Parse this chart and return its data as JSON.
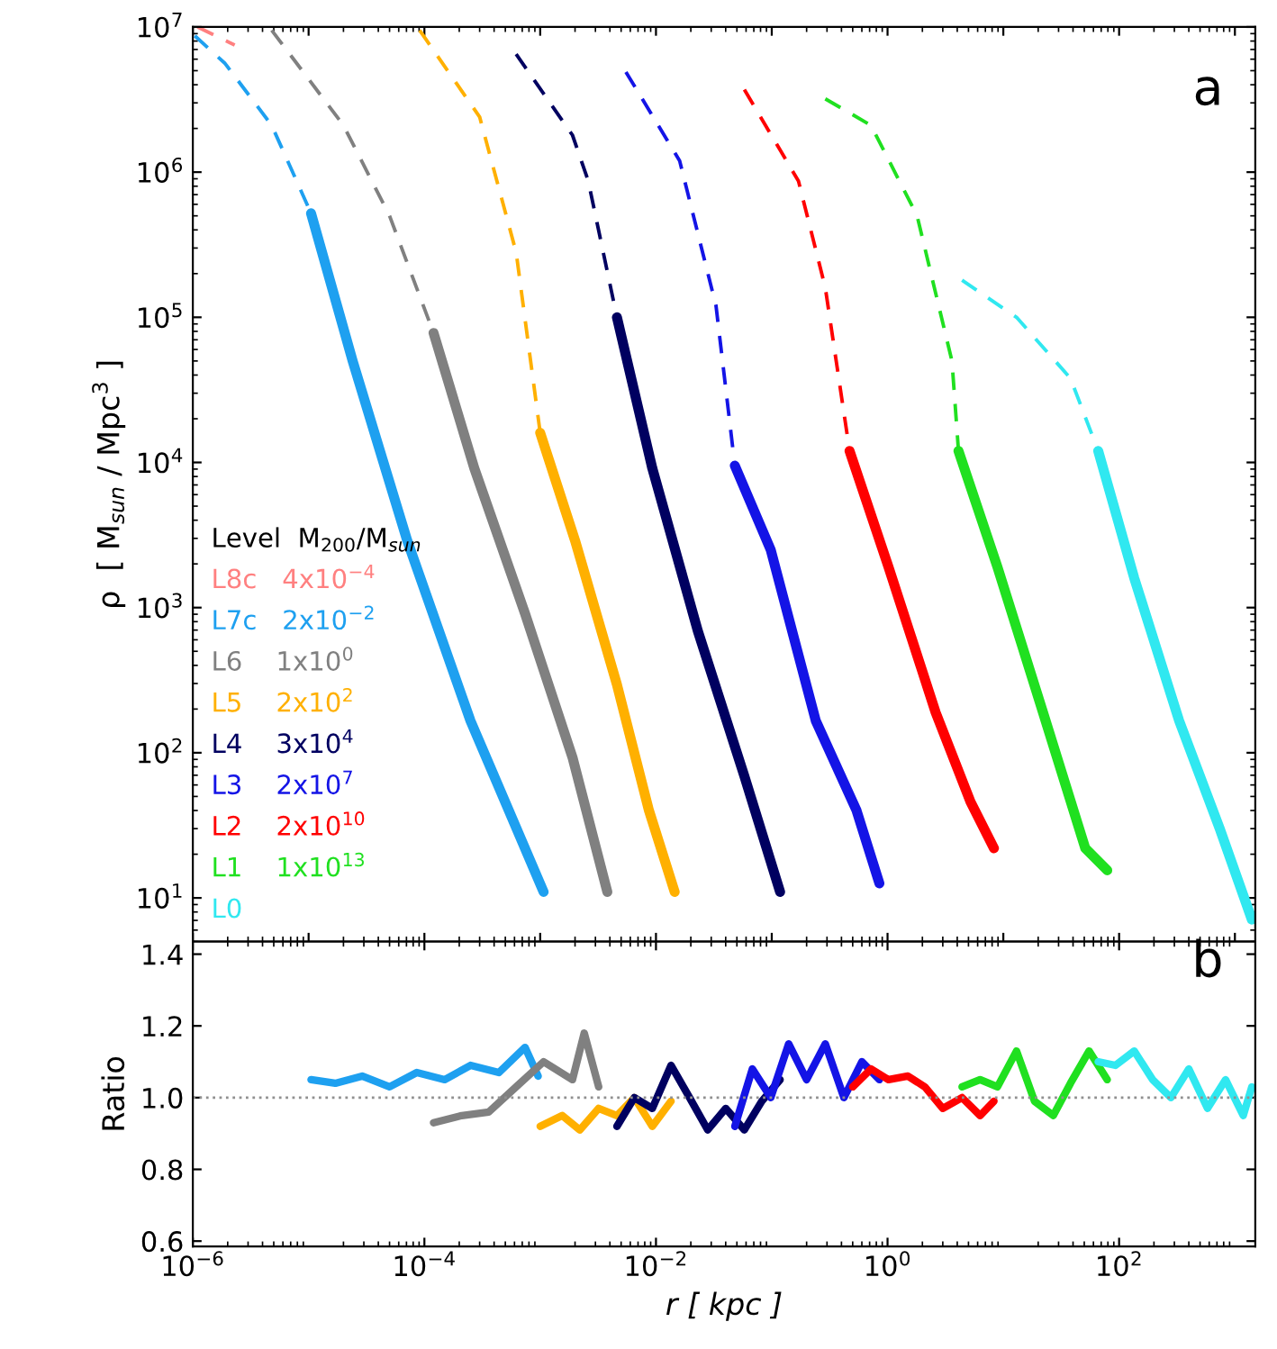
{
  "chart_data": [
    {
      "type": "line",
      "ylabel": "ρ  [ M$_{sun}$ / Mpc$^{3}$ ]",
      "log": "xy",
      "xlim": [
        1e-06,
        1500
      ],
      "ylim": [
        5,
        10000000.0
      ],
      "yticks": [
        {
          "value": 10,
          "label": "10$^{1}$"
        },
        {
          "value": 100,
          "label": "10$^{2}$"
        },
        {
          "value": 1000,
          "label": "10$^{3}$"
        },
        {
          "value": 10000,
          "label": "10$^{4}$"
        },
        {
          "value": 100000,
          "label": "10$^{5}$"
        },
        {
          "value": 1000000,
          "label": "10$^{6}$"
        },
        {
          "value": 10000000,
          "label": "10$^{7}$"
        }
      ],
      "tick_labels": "y",
      "legend": "bottom left",
      "legend_title": "Level  M$_{200}$/M$_{sun}$",
      "annotations": [
        "a"
      ],
      "series": [
        {
          "name": "L8c   4x10$^{−4}$",
          "color": "#ff8080",
          "line_style": "dashed",
          "x": [
            1.1e-06,
            2.3e-06
          ],
          "values": [
            10000000.0,
            7500000.0
          ]
        },
        {
          "color": "#1ea0f0",
          "line_style": "dashed",
          "x": [
            1.04e-06,
            1.9e-06,
            4.8e-06,
            1.05e-05
          ],
          "values": [
            8700000.0,
            5600000.0,
            2100000.0,
            520000.0
          ]
        },
        {
          "name": "L7c   2x10$^{−2}$",
          "color": "#1ea0f0",
          "line_style": "solid",
          "x": [
            1.05e-05,
            2.4e-05,
            7.1e-05,
            0.00025,
            0.00107
          ],
          "values": [
            520000.0,
            50000.0,
            2900,
            166,
            11
          ]
        },
        {
          "color": "#808080",
          "line_style": "dashed",
          "x": [
            4.8e-06,
            2e-05,
            5e-05,
            0.00012
          ],
          "values": [
            9500000.0,
            2100000.0,
            500000.0,
            78000.0
          ]
        },
        {
          "name": "L6    1x10$^{0}$",
          "color": "#808080",
          "line_style": "solid",
          "x": [
            0.00012,
            0.00027,
            0.00074,
            0.0019,
            0.0038
          ],
          "values": [
            78000.0,
            9100,
            910,
            93,
            11
          ]
        },
        {
          "color": "#ffb000",
          "line_style": "dashed",
          "x": [
            9.1e-05,
            0.0003,
            0.00062,
            0.001
          ],
          "values": [
            9500000.0,
            2400000.0,
            280000.0,
            16000.0
          ]
        },
        {
          "name": "L5    2x10$^{2}$",
          "color": "#ffb000",
          "line_style": "solid",
          "x": [
            0.001,
            0.002,
            0.0046,
            0.0087,
            0.0145
          ],
          "values": [
            16000.0,
            2900,
            295,
            40,
            11
          ]
        },
        {
          "color": "#000060",
          "line_style": "dashed",
          "x": [
            0.00062,
            0.0019,
            0.0026,
            0.0046
          ],
          "values": [
            6500000.0,
            1800000.0,
            870000.0,
            100000.0
          ]
        },
        {
          "name": "L4    3x10$^{4}$",
          "color": "#000060",
          "line_style": "solid",
          "x": [
            0.0046,
            0.0093,
            0.023,
            0.058,
            0.118
          ],
          "values": [
            100000.0,
            9100,
            690,
            69,
            11
          ]
        },
        {
          "color": "#1414e6",
          "line_style": "dashed",
          "x": [
            0.0055,
            0.016,
            0.033,
            0.048
          ],
          "values": [
            4900000.0,
            1200000.0,
            120000.0,
            9500
          ]
        },
        {
          "name": "L3    2x10$^{7}$",
          "color": "#1414e6",
          "line_style": "solid",
          "x": [
            0.048,
            0.098,
            0.24,
            0.54,
            0.85
          ],
          "values": [
            9500,
            2500,
            166,
            40,
            12.6
          ]
        },
        {
          "color": "#ff0000",
          "line_style": "dashed",
          "x": [
            0.058,
            0.17,
            0.29,
            0.47
          ],
          "values": [
            3700000.0,
            870000.0,
            160000.0,
            12000.0
          ]
        },
        {
          "name": "L2    2x10$^{10}$",
          "color": "#ff0000",
          "line_style": "solid",
          "x": [
            0.47,
            1.02,
            2.6,
            5.2,
            8.3
          ],
          "values": [
            12000.0,
            1900,
            190,
            46,
            22
          ]
        },
        {
          "color": "#20e020",
          "line_style": "dashed",
          "x": [
            0.29,
            0.72,
            1.8,
            3.6,
            4.1
          ],
          "values": [
            3200000.0,
            2100000.0,
            500000.0,
            50000.0,
            12000.0
          ]
        },
        {
          "name": "L1    1x10$^{13}$",
          "color": "#20e020",
          "line_style": "solid",
          "x": [
            4.1,
            8.9,
            22,
            51,
            79
          ],
          "values": [
            12000.0,
            1900,
            190,
            22,
            15.5
          ]
        },
        {
          "color": "#30e8f0",
          "line_style": "dashed",
          "x": [
            4.4,
            13,
            38,
            66
          ],
          "values": [
            180000.0,
            100000.0,
            38000.0,
            12000.0
          ]
        },
        {
          "name": "L0",
          "color": "#30e8f0",
          "line_style": "solid",
          "x": [
            66,
            135,
            330,
            740,
            1400
          ],
          "values": [
            12000.0,
            1600,
            166,
            30,
            7.1
          ]
        }
      ]
    },
    {
      "type": "line",
      "xlabel": "r [ kpc ]",
      "ylabel": "Ratio",
      "log": "x",
      "xlim": [
        1e-06,
        1500
      ],
      "ylim": [
        0.585,
        1.435
      ],
      "xticks": [
        {
          "value": 1e-06,
          "label": "10$^{−6}$"
        },
        {
          "value": 0.0001,
          "label": "10$^{−4}$"
        },
        {
          "value": 0.01,
          "label": "10$^{−2}$"
        },
        {
          "value": 1,
          "label": "10$^{0}$"
        },
        {
          "value": 100,
          "label": "10$^{2}$"
        }
      ],
      "yticks": [
        0.6,
        0.8,
        {
          "value": 1.0,
          "label": "1.0"
        },
        1.2,
        1.4
      ],
      "annotations": [
        "b"
      ],
      "ref_lines": [
        {
          "axis": "y",
          "value": 1.0,
          "color": "#909090",
          "line_style": "dotted"
        }
      ],
      "series": [
        {
          "color": "#1ea0f0",
          "line_style": "solid",
          "x": [
            1.05e-05,
            1.7e-05,
            2.9e-05,
            5e-05,
            8.6e-05,
            0.00015,
            0.00025,
            0.00044,
            0.00074,
            0.00096
          ],
          "values": [
            1.05,
            1.04,
            1.06,
            1.03,
            1.07,
            1.05,
            1.09,
            1.07,
            1.14,
            1.06
          ]
        },
        {
          "color": "#808080",
          "line_style": "solid",
          "x": [
            0.00012,
            0.00021,
            0.00036,
            0.00062,
            0.00107,
            0.0019,
            0.0024,
            0.0032
          ],
          "values": [
            0.93,
            0.95,
            0.96,
            1.03,
            1.1,
            1.05,
            1.18,
            1.03
          ]
        },
        {
          "color": "#ffb000",
          "line_style": "solid",
          "x": [
            0.001,
            0.00155,
            0.0022,
            0.0032,
            0.0046,
            0.0065,
            0.0093,
            0.0135
          ],
          "values": [
            0.92,
            0.95,
            0.91,
            0.97,
            0.95,
            1.0,
            0.92,
            0.99
          ]
        },
        {
          "color": "#000060",
          "line_style": "solid",
          "x": [
            0.0046,
            0.0065,
            0.0093,
            0.0135,
            0.0195,
            0.028,
            0.04,
            0.058,
            0.082,
            0.118
          ],
          "values": [
            0.92,
            1.0,
            0.97,
            1.09,
            1.0,
            0.91,
            0.97,
            0.91,
            0.99,
            1.05
          ]
        },
        {
          "color": "#1414e6",
          "line_style": "solid",
          "x": [
            0.048,
            0.068,
            0.098,
            0.14,
            0.2,
            0.29,
            0.42,
            0.6,
            0.85
          ],
          "values": [
            0.92,
            1.08,
            1.0,
            1.15,
            1.05,
            1.15,
            1.0,
            1.1,
            1.05
          ]
        },
        {
          "color": "#ff0000",
          "line_style": "solid",
          "x": [
            0.5,
            0.72,
            1.02,
            1.5,
            2.1,
            3.0,
            4.4,
            6.3,
            8.3
          ],
          "values": [
            1.03,
            1.08,
            1.05,
            1.06,
            1.03,
            0.97,
            1.0,
            0.95,
            0.99
          ]
        },
        {
          "color": "#20e020",
          "line_style": "solid",
          "x": [
            4.4,
            6.3,
            8.9,
            13,
            18.6,
            27,
            38,
            55,
            79
          ],
          "values": [
            1.03,
            1.05,
            1.03,
            1.13,
            0.99,
            0.95,
            1.04,
            1.13,
            1.05
          ]
        },
        {
          "color": "#30e8f0",
          "line_style": "solid",
          "x": [
            66,
            93,
            135,
            195,
            280,
            400,
            580,
            830,
            1180,
            1400
          ],
          "values": [
            1.1,
            1.09,
            1.13,
            1.05,
            1.0,
            1.08,
            0.97,
            1.05,
            0.95,
            1.03
          ]
        }
      ]
    }
  ]
}
